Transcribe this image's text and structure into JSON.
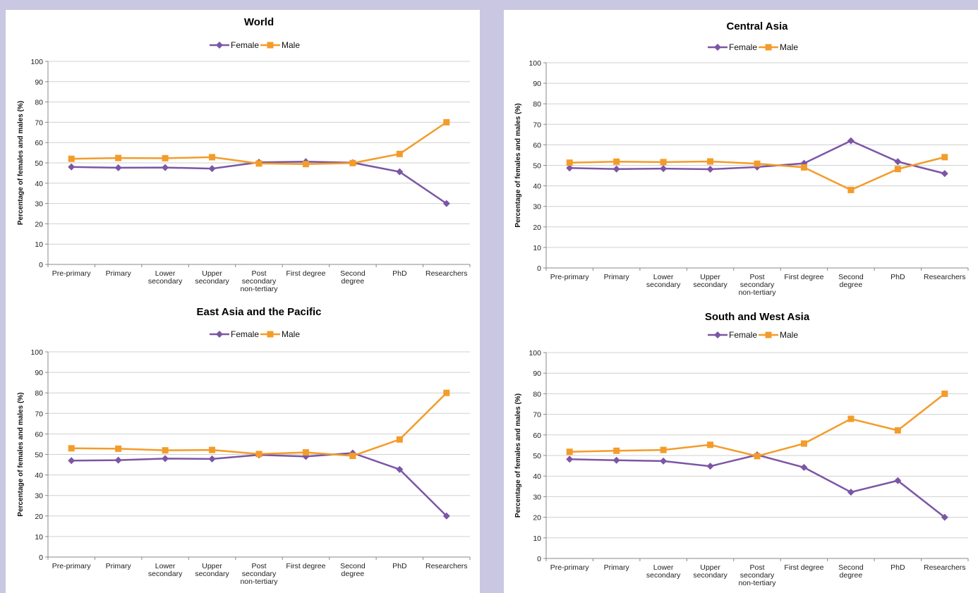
{
  "chart_data": [
    {
      "type": "line",
      "title": "World",
      "ylabel": "Percentage of females and males (%)",
      "ylim": [
        0,
        100
      ],
      "yticks": [
        0,
        10,
        20,
        30,
        40,
        50,
        60,
        70,
        80,
        90,
        100
      ],
      "categories": [
        "Pre-primary",
        "Primary",
        "Lower\nsecondary",
        "Upper\nsecondary",
        "Post\nsecondary\nnon-tertiary",
        "First degree",
        "Second\ndegree",
        "PhD",
        "Researchers"
      ],
      "legend": "top-center",
      "grid": true,
      "series": [
        {
          "name": "Female",
          "color": "#7b56a6",
          "marker": "diamond",
          "values": [
            48,
            47.6,
            47.7,
            47.2,
            50.3,
            50.6,
            50.1,
            45.6,
            30
          ]
        },
        {
          "name": "Male",
          "color": "#f39c2a",
          "marker": "square",
          "values": [
            52,
            52.4,
            52.3,
            52.8,
            49.7,
            49.4,
            49.9,
            54.4,
            70
          ]
        }
      ]
    },
    {
      "type": "line",
      "title": "Central Asia",
      "ylabel": "Percentage of females and males (%)",
      "ylim": [
        0,
        100
      ],
      "yticks": [
        0,
        10,
        20,
        30,
        40,
        50,
        60,
        70,
        80,
        90,
        100
      ],
      "categories": [
        "Pre-primary",
        "Primary",
        "Lower\nsecondary",
        "Upper\nsecondary",
        "Post\nsecondary\nnon-tertiary",
        "First degree",
        "Second\ndegree",
        "PhD",
        "Researchers"
      ],
      "legend": "top-center",
      "grid": true,
      "series": [
        {
          "name": "Female",
          "color": "#7b56a6",
          "marker": "diamond",
          "values": [
            48.7,
            48.2,
            48.4,
            48.1,
            49.2,
            51,
            62,
            51.8,
            46
          ]
        },
        {
          "name": "Male",
          "color": "#f39c2a",
          "marker": "square",
          "values": [
            51.3,
            51.8,
            51.6,
            51.9,
            50.8,
            49,
            38,
            48.2,
            54
          ]
        }
      ]
    },
    {
      "type": "line",
      "title": "East Asia and the Pacific",
      "ylabel": "Percentage of females and males (%)",
      "ylim": [
        0,
        100
      ],
      "yticks": [
        0,
        10,
        20,
        30,
        40,
        50,
        60,
        70,
        80,
        90,
        100
      ],
      "categories": [
        "Pre-primary",
        "Primary",
        "Lower\nsecondary",
        "Upper\nsecondary",
        "Post\nsecondary\nnon-tertiary",
        "First degree",
        "Second\ndegree",
        "PhD",
        "Researchers"
      ],
      "legend": "top-center",
      "grid": true,
      "series": [
        {
          "name": "Female",
          "color": "#7b56a6",
          "marker": "diamond",
          "values": [
            47,
            47.2,
            48,
            47.8,
            49.8,
            49,
            50.7,
            42.7,
            20
          ]
        },
        {
          "name": "Male",
          "color": "#f39c2a",
          "marker": "square",
          "values": [
            53,
            52.8,
            52,
            52.2,
            50.2,
            51,
            49.3,
            57.3,
            80
          ]
        }
      ]
    },
    {
      "type": "line",
      "title": "South and West Asia",
      "ylabel": "Percentage of females and males (%)",
      "ylim": [
        0,
        100
      ],
      "yticks": [
        0,
        10,
        20,
        30,
        40,
        50,
        60,
        70,
        80,
        90,
        100
      ],
      "categories": [
        "Pre-primary",
        "Primary",
        "Lower\nsecondary",
        "Upper\nsecondary",
        "Post\nsecondary\nnon-tertiary",
        "First degree",
        "Second\ndegree",
        "PhD",
        "Researchers"
      ],
      "legend": "top-center",
      "grid": true,
      "series": [
        {
          "name": "Female",
          "color": "#7b56a6",
          "marker": "diamond",
          "values": [
            48.2,
            47.7,
            47.3,
            44.8,
            50.3,
            44.2,
            32.2,
            37.8,
            20
          ]
        },
        {
          "name": "Male",
          "color": "#f39c2a",
          "marker": "square",
          "values": [
            51.8,
            52.3,
            52.7,
            55.2,
            49.7,
            55.8,
            67.8,
            62.2,
            80
          ]
        }
      ]
    }
  ]
}
